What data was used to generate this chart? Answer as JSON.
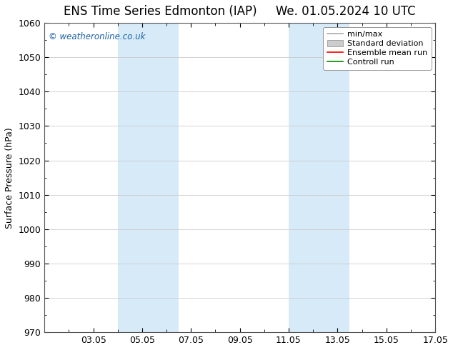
{
  "title_left": "ENS Time Series Edmonton (IAP)",
  "title_right": "We. 01.05.2024 10 UTC",
  "ylabel": "Surface Pressure (hPa)",
  "ylim": [
    970,
    1060
  ],
  "yticks": [
    970,
    980,
    990,
    1000,
    1010,
    1020,
    1030,
    1040,
    1050,
    1060
  ],
  "xlim": [
    0,
    16
  ],
  "xtick_positions": [
    2,
    4,
    6,
    8,
    10,
    12,
    14,
    16
  ],
  "xtick_labels": [
    "03.05",
    "05.05",
    "07.05",
    "09.05",
    "11.05",
    "13.05",
    "15.05",
    "17.05"
  ],
  "shaded_bands": [
    {
      "x_start": 3,
      "x_end": 5.5
    },
    {
      "x_start": 10,
      "x_end": 12.5
    }
  ],
  "shaded_color": "#d6eaf8",
  "background_color": "#ffffff",
  "watermark": "© weatheronline.co.uk",
  "watermark_color": "#1a5fa8",
  "legend_items": [
    {
      "label": "min/max",
      "color": "#aaaaaa",
      "style": "line"
    },
    {
      "label": "Standard deviation",
      "color": "#cccccc",
      "style": "band"
    },
    {
      "label": "Ensemble mean run",
      "color": "#ff0000",
      "style": "line"
    },
    {
      "label": "Controll run",
      "color": "#008800",
      "style": "line"
    }
  ],
  "grid_color": "#cccccc",
  "title_fontsize": 12,
  "label_fontsize": 9,
  "tick_fontsize": 9,
  "legend_fontsize": 8
}
